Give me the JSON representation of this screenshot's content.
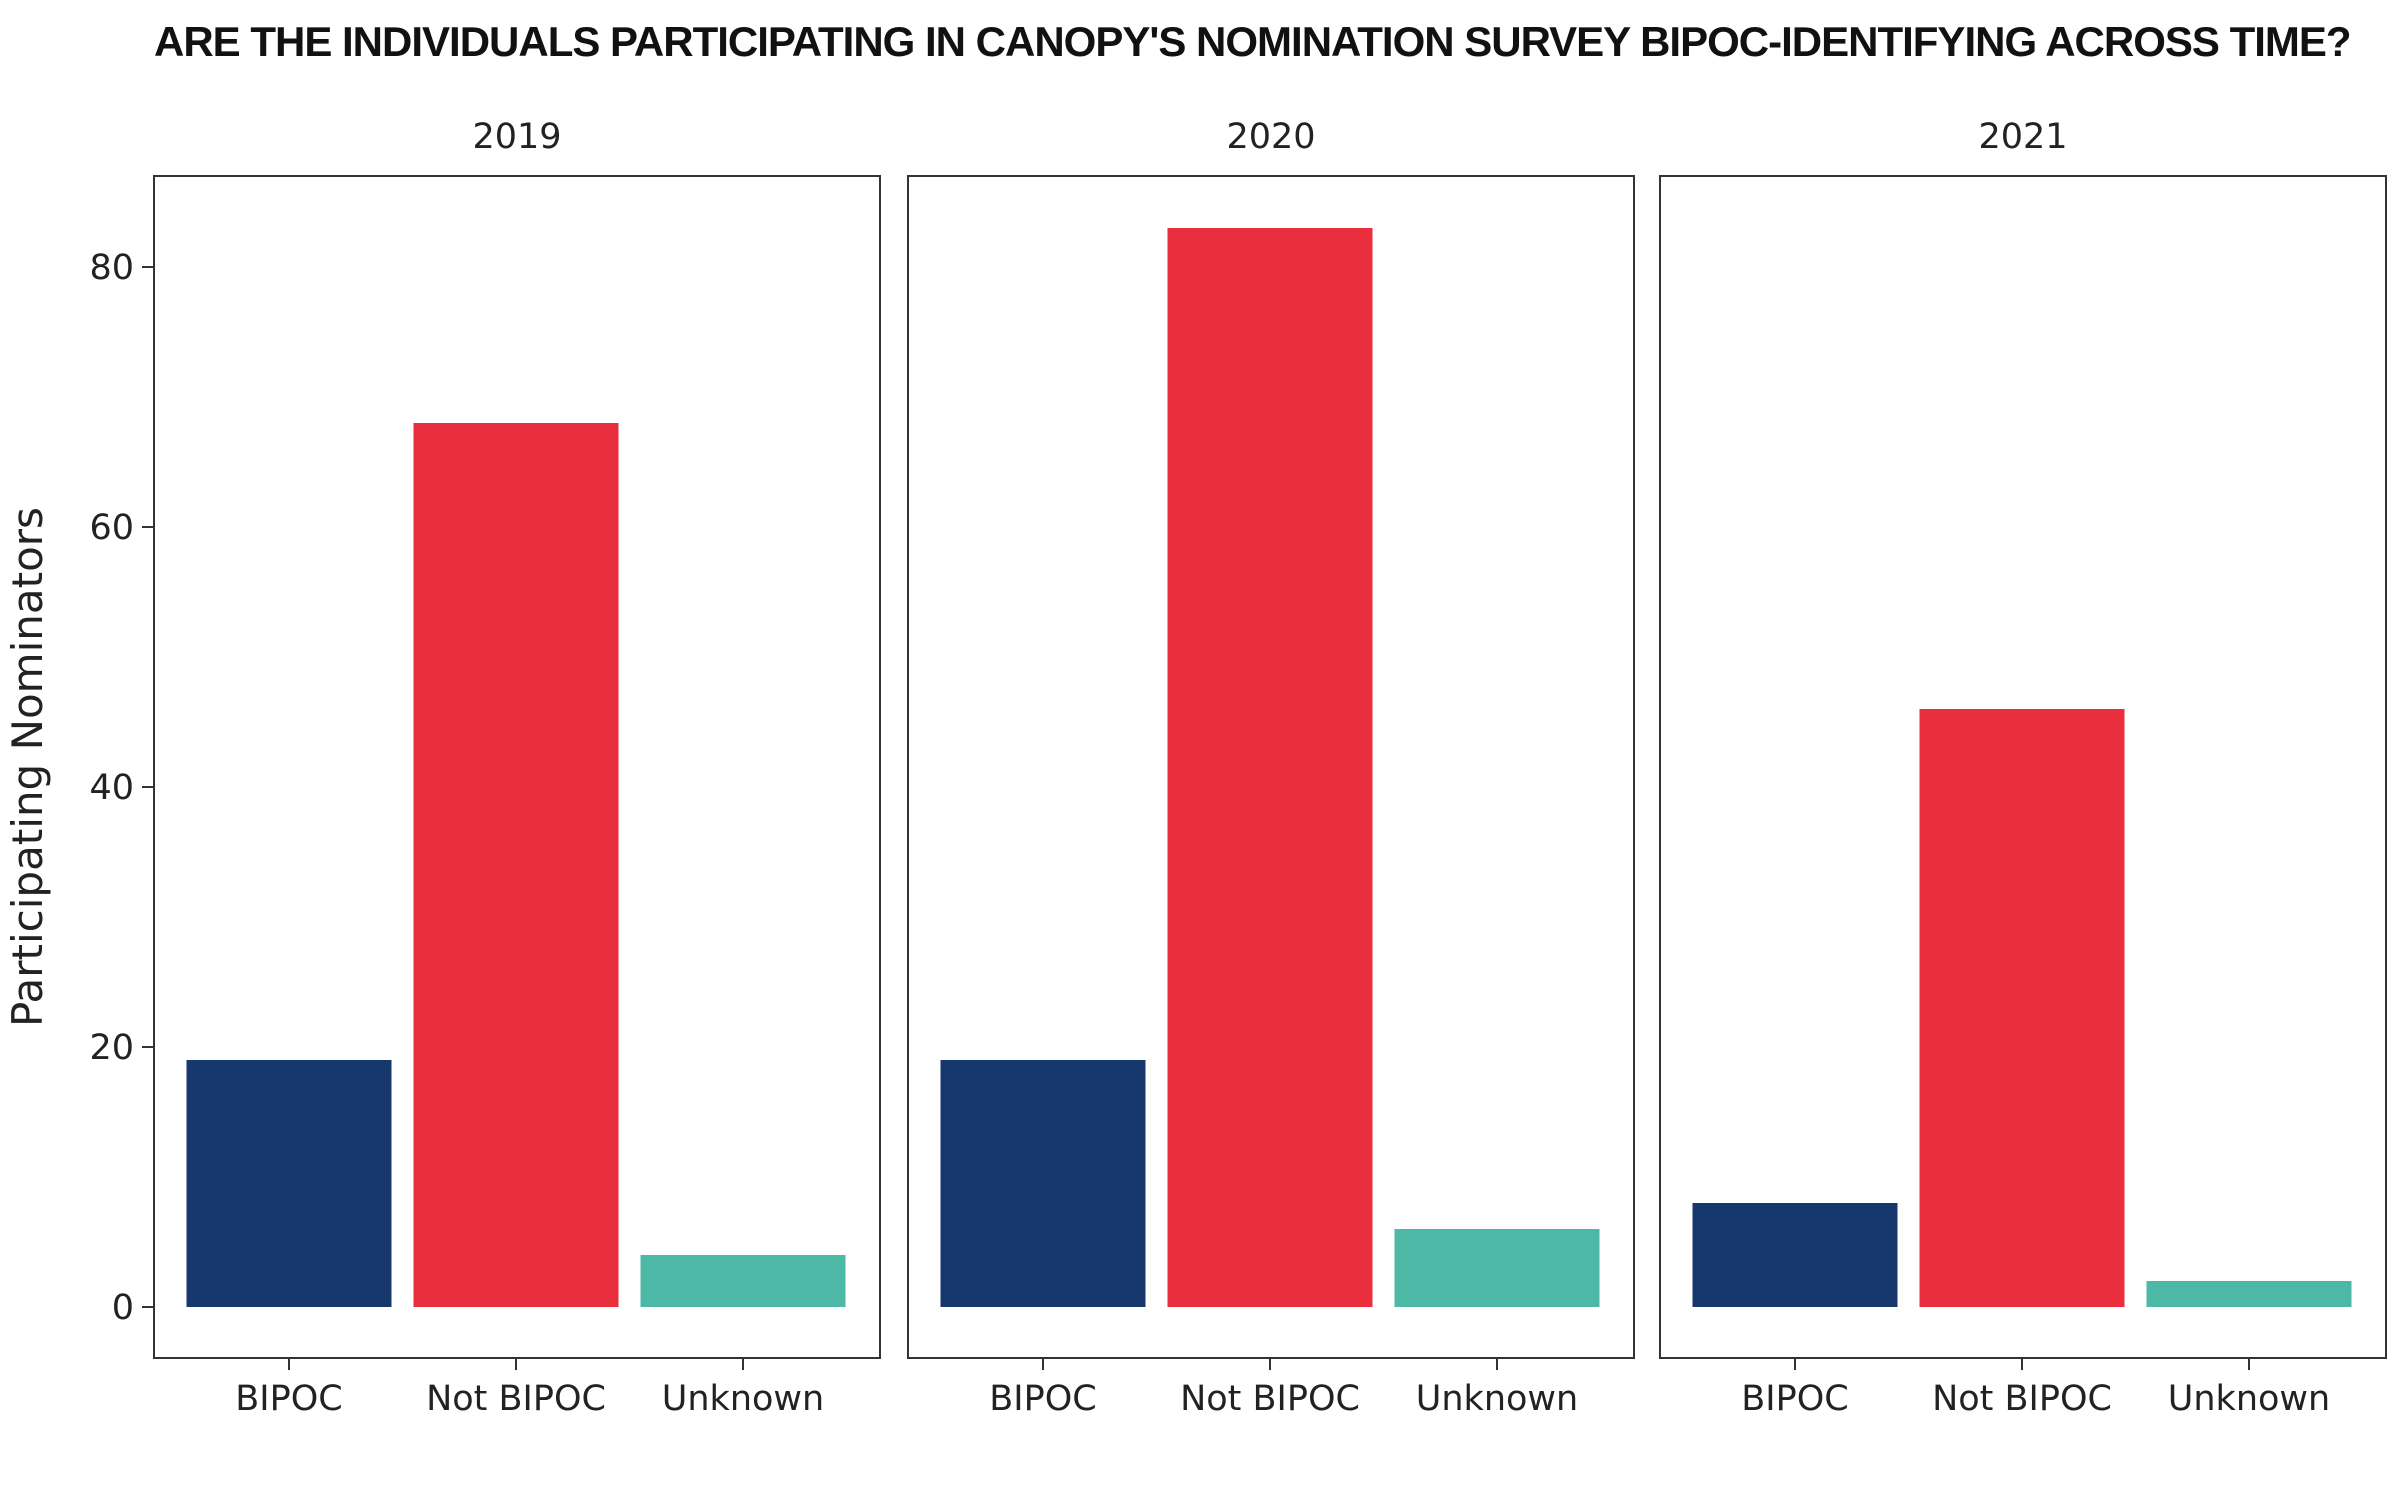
{
  "chart_data": {
    "type": "bar",
    "title": "ARE THE INDIVIDUALS PARTICIPATING IN CANOPY'S NOMINATION SURVEY BIPOC-IDENTIFYING ACROSS TIME?",
    "ylabel": "Participating Nominators",
    "xlabel": "",
    "ylim": [
      0,
      87
    ],
    "yticks": [
      0,
      20,
      40,
      60,
      80
    ],
    "grid": false,
    "legend": "none",
    "categories": [
      "BIPOC",
      "Not BIPOC",
      "Unknown"
    ],
    "colors": {
      "BIPOC": "#17386c",
      "Not BIPOC": "#e92e3d",
      "Unknown": "#4db8a5"
    },
    "facets": [
      {
        "label": "2019",
        "values": [
          19,
          68,
          4
        ]
      },
      {
        "label": "2020",
        "values": [
          19,
          83,
          6
        ]
      },
      {
        "label": "2021",
        "values": [
          8,
          46,
          2
        ]
      }
    ]
  }
}
